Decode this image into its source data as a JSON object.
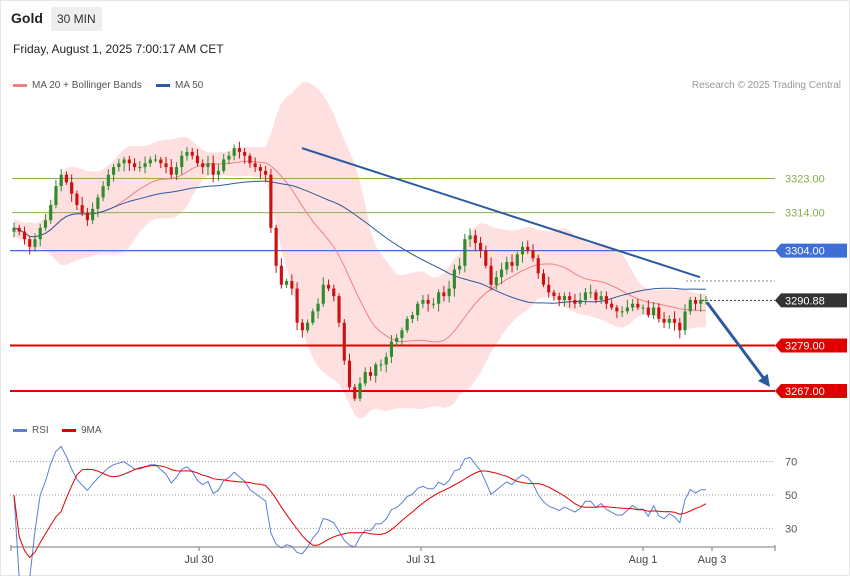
{
  "header": {
    "symbol": "Gold",
    "timeframe": "30 MIN",
    "datetime": "Friday, August 1, 2025 7:00:17 AM CET",
    "copyright": "Research © 2025 Trading Central"
  },
  "legend": {
    "ma20": "MA 20 + Bollinger Bands",
    "ma50": "MA 50",
    "rsi": "RSI",
    "rsi_ma": "9MA"
  },
  "colors": {
    "ma20": "#f08080",
    "ma50": "#2c5a9e",
    "bb_fill": "#ffd6d6",
    "up": "#2e8b2e",
    "down": "#cc1111",
    "resistance_green": "#88b04b",
    "pivot_blue": "#3f6fd6",
    "support_red": "#e00000",
    "rsi": "#5b7fd6",
    "rsi_ma": "#e00000"
  },
  "chart_data": [
    {
      "type": "candlestick",
      "x_labels": [
        "Jul 30",
        "Jul 31",
        "Aug 1",
        "Aug 3"
      ],
      "ylim": [
        3262,
        3345
      ],
      "last_price": "3290.88",
      "levels": [
        {
          "value": 3323.0,
          "label": "3323.00",
          "kind": "resistance"
        },
        {
          "value": 3314.0,
          "label": "3314.00",
          "kind": "resistance"
        },
        {
          "value": 3304.0,
          "label": "3304.00",
          "kind": "pivot"
        },
        {
          "value": 3279.0,
          "label": "3279.00",
          "kind": "support"
        },
        {
          "value": 3267.0,
          "label": "3267.00",
          "kind": "support"
        }
      ],
      "closes": [
        3310,
        3309,
        3307,
        3305,
        3307,
        3310,
        3312,
        3316,
        3321,
        3324,
        3322,
        3319,
        3316,
        3314,
        3312,
        3315,
        3318,
        3321,
        3324,
        3326,
        3327,
        3328,
        3327,
        3326,
        3326,
        3327,
        3328,
        3328,
        3327,
        3326,
        3324,
        3326,
        3329,
        3330,
        3329,
        3327,
        3326,
        3327,
        3324,
        3325,
        3328,
        3329,
        3331,
        3330,
        3329,
        3327,
        3326,
        3325,
        3324,
        3310,
        3300,
        3295,
        3296,
        3294,
        3285,
        3283,
        3285,
        3288,
        3290,
        3295,
        3294,
        3292,
        3285,
        3275,
        3268,
        3265,
        3269,
        3272,
        3271,
        3274,
        3274,
        3276,
        3280,
        3281,
        3283,
        3286,
        3287,
        3290,
        3291,
        3290,
        3290,
        3293,
        3292,
        3294,
        3299,
        3300,
        3307,
        3308,
        3306,
        3304,
        3300,
        3295,
        3297,
        3299,
        3301,
        3300,
        3303,
        3305,
        3304,
        3302,
        3298,
        3295,
        3293,
        3292,
        3291,
        3292,
        3291,
        3290,
        3291,
        3293,
        3293,
        3291,
        3292,
        3290,
        3289,
        3288,
        3288,
        3289,
        3290,
        3289,
        3289,
        3287,
        3289,
        3286,
        3285,
        3286,
        3285,
        3283,
        3288,
        3291,
        3290,
        3291,
        3291
      ],
      "trendline_start": 3331,
      "trendline_end": 3297,
      "projection_target": 3267
    },
    {
      "type": "line",
      "name": "RSI",
      "ylim": [
        20,
        80
      ],
      "y_ticks": [
        "70",
        "50",
        "30"
      ],
      "y_tick_values": [
        70,
        50,
        30
      ]
    }
  ]
}
